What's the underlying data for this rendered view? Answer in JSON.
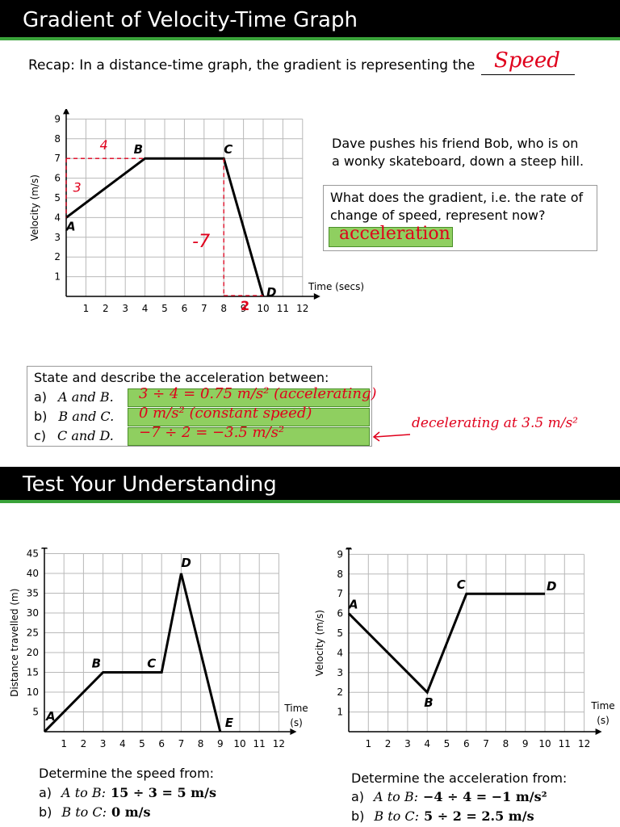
{
  "section1": {
    "title": "Gradient of Velocity-Time Graph",
    "recap_text": "Recap: In a distance-time graph, the gradient is representing the",
    "recap_answer": "Speed",
    "graph": {
      "ylabel": "Velocity (m/s)",
      "xlabel": "Time (secs)",
      "x_ticks": [
        "1",
        "2",
        "3",
        "4",
        "5",
        "6",
        "7",
        "8",
        "9",
        "10",
        "11",
        "12"
      ],
      "y_ticks": [
        "1",
        "2",
        "3",
        "4",
        "5",
        "6",
        "7",
        "8",
        "9"
      ],
      "point_labels": [
        "A",
        "B",
        "C",
        "D"
      ],
      "annotations": {
        "rise_ab": "3",
        "run_ab": "4",
        "fall_cd": "-7",
        "run_cd": "2"
      }
    },
    "story": "Dave pushes his friend Bob, who is on a wonky skateboard, down a steep hill.",
    "question": "What does the gradient, i.e. the rate of change of speed, represent now?",
    "question_answer": "acceleration",
    "state_prompt": "State and describe the acceleration between:",
    "parts": [
      {
        "letter": "a)",
        "text": "A and B.",
        "answer": "3 ÷ 4 = 0.75 m/s² (accelerating)"
      },
      {
        "letter": "b)",
        "text": "B and C.",
        "answer": "0 m/s² (constant speed)"
      },
      {
        "letter": "c)",
        "text": "C and D.",
        "answer": "−7 ÷ 2 = −3.5 m/s²"
      }
    ],
    "side_note": "decelerating at 3.5 m/s²"
  },
  "section2": {
    "title": "Test Your Understanding",
    "left": {
      "ylabel": "Distance travelled (m)",
      "xlabel": "Time (s)",
      "prompt": "Determine the speed from:",
      "answers": [
        {
          "letter": "a)",
          "route": "A to B:",
          "working": "15 ÷ 3 = 5 m/s"
        },
        {
          "letter": "b)",
          "route": "B to C:",
          "working": "0 m/s"
        }
      ]
    },
    "right": {
      "ylabel": "Velocity (m/s)",
      "xlabel": "Time (s)",
      "prompt": "Determine the acceleration from:",
      "answers": [
        {
          "letter": "a)",
          "route": "A to B:",
          "working": "−4 ÷ 4 = −1 m/s²"
        },
        {
          "letter": "b)",
          "route": "B to C:",
          "working": "5 ÷ 2 = 2.5 m/s"
        }
      ]
    }
  },
  "chart_data": [
    {
      "type": "line",
      "xlabel": "Time (secs)",
      "ylabel": "Velocity (m/s)",
      "xlim": [
        0,
        12
      ],
      "ylim": [
        0,
        9
      ],
      "grid": true,
      "points": [
        {
          "label": "A",
          "x": 0,
          "y": 4
        },
        {
          "label": "B",
          "x": 4,
          "y": 7
        },
        {
          "label": "C",
          "x": 8,
          "y": 7
        },
        {
          "label": "D",
          "x": 10,
          "y": 0
        }
      ]
    },
    {
      "type": "line",
      "xlabel": "Time (s)",
      "ylabel": "Distance travelled (m)",
      "xlim": [
        0,
        12
      ],
      "ylim": [
        0,
        45
      ],
      "grid": true,
      "points": [
        {
          "label": "A",
          "x": 0,
          "y": 0
        },
        {
          "label": "B",
          "x": 3,
          "y": 15
        },
        {
          "label": "C",
          "x": 6,
          "y": 15
        },
        {
          "label": "D",
          "x": 7,
          "y": 40
        },
        {
          "label": "E",
          "x": 9,
          "y": 0
        }
      ]
    },
    {
      "type": "line",
      "xlabel": "Time (s)",
      "ylabel": "Velocity (m/s)",
      "xlim": [
        0,
        12
      ],
      "ylim": [
        0,
        9
      ],
      "grid": true,
      "points": [
        {
          "label": "A",
          "x": 0,
          "y": 6
        },
        {
          "label": "B",
          "x": 4,
          "y": 2
        },
        {
          "label": "C",
          "x": 6,
          "y": 7
        },
        {
          "label": "D",
          "x": 10,
          "y": 7
        }
      ]
    }
  ]
}
